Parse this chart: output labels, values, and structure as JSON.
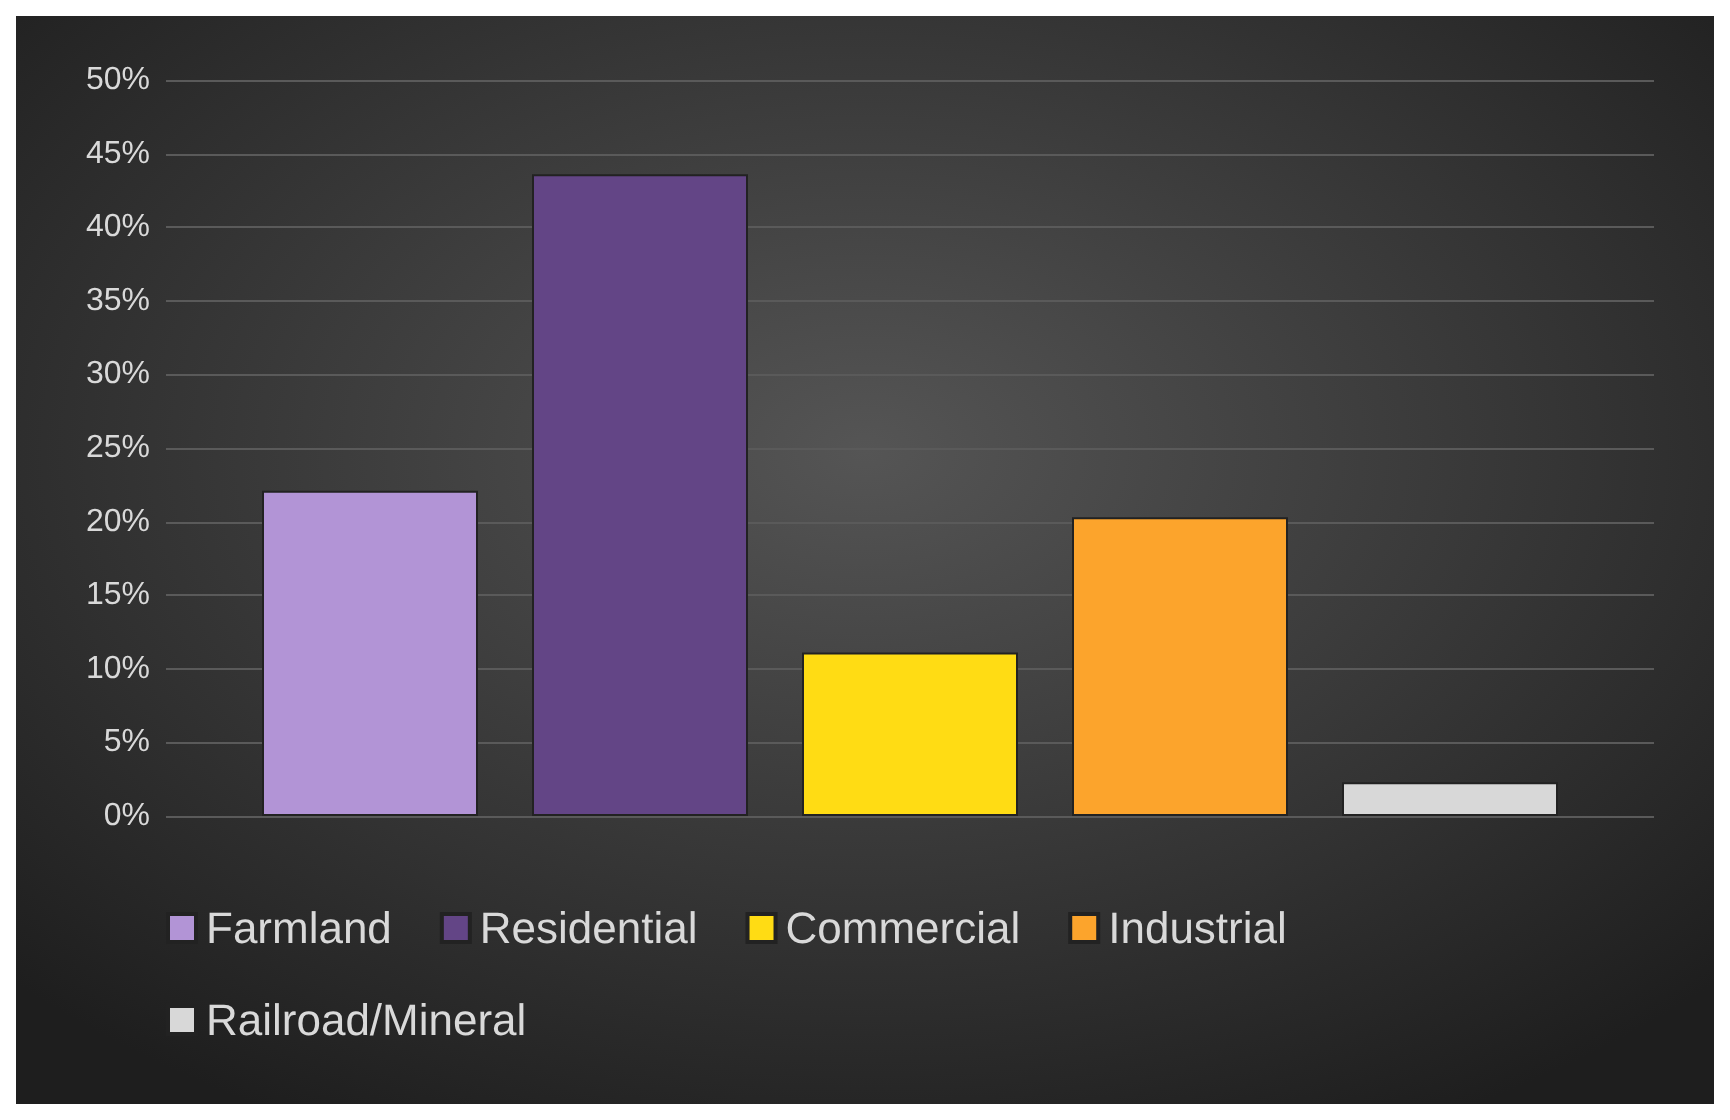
{
  "chart_data": {
    "type": "bar",
    "categories": [
      null
    ],
    "series": [
      {
        "name": "Farmland",
        "color": "#b294d6",
        "values": [
          22.1
        ]
      },
      {
        "name": "Residential",
        "color": "#634586",
        "values": [
          43.6
        ]
      },
      {
        "name": "Commercial",
        "color": "#ffdc14",
        "values": [
          11.1
        ]
      },
      {
        "name": "Industrial",
        "color": "#fca42c",
        "values": [
          20.3
        ]
      },
      {
        "name": "Railroad/Mineral",
        "color": "#d8d8d8",
        "values": [
          2.3
        ]
      }
    ],
    "ylim": [
      0,
      50
    ],
    "yticks": [
      {
        "value": 0,
        "label": "0%"
      },
      {
        "value": 5,
        "label": "5%"
      },
      {
        "value": 10,
        "label": "10%"
      },
      {
        "value": 15,
        "label": "15%"
      },
      {
        "value": 20,
        "label": "20%"
      },
      {
        "value": 25,
        "label": "25%"
      },
      {
        "value": 30,
        "label": "30%"
      },
      {
        "value": 35,
        "label": "35%"
      },
      {
        "value": 40,
        "label": "40%"
      },
      {
        "value": 45,
        "label": "45%"
      },
      {
        "value": 50,
        "label": "50%"
      }
    ],
    "grid": "y",
    "legend": "bottom"
  }
}
